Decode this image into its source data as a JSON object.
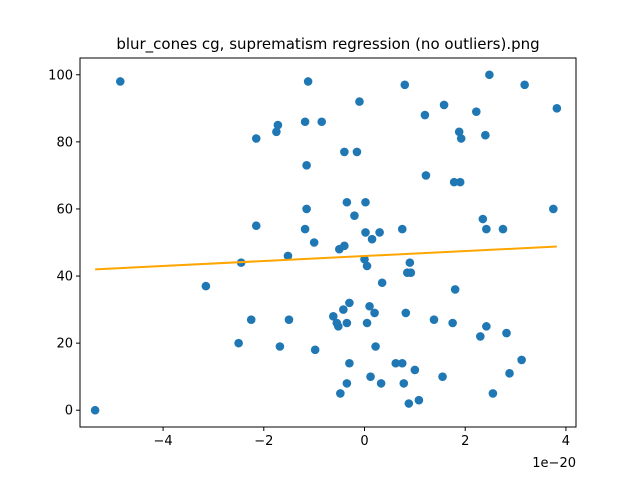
{
  "chart_data": {
    "type": "scatter",
    "title": "blur_cones cg, suprematism regression (no outliers).png",
    "xlabel": "",
    "ylabel": "",
    "x_offset_text": "1e−20",
    "xlim": [
      -5.65,
      4.2
    ],
    "ylim": [
      -5,
      105
    ],
    "xticks": [
      -4,
      -2,
      0,
      2,
      4
    ],
    "xtick_labels": [
      "−4",
      "−2",
      "0",
      "2",
      "4"
    ],
    "yticks": [
      0,
      20,
      40,
      60,
      80,
      100
    ],
    "ytick_labels": [
      "0",
      "20",
      "40",
      "60",
      "80",
      "100"
    ],
    "grid": false,
    "colors": {
      "points": "#1f77b4",
      "regression": "#ffa500"
    },
    "series": [
      {
        "type": "scatter",
        "points": [
          [
            -5.35,
            0
          ],
          [
            -4.85,
            98
          ],
          [
            -3.15,
            37
          ],
          [
            -2.5,
            20
          ],
          [
            -2.45,
            44
          ],
          [
            -2.25,
            27
          ],
          [
            -2.15,
            81
          ],
          [
            -2.15,
            55
          ],
          [
            -1.75,
            83
          ],
          [
            -1.72,
            85
          ],
          [
            -1.68,
            19
          ],
          [
            -1.52,
            46
          ],
          [
            -1.5,
            27
          ],
          [
            -1.18,
            86
          ],
          [
            -1.18,
            54
          ],
          [
            -1.15,
            73
          ],
          [
            -1.15,
            60
          ],
          [
            -1.12,
            98
          ],
          [
            -1.0,
            50
          ],
          [
            -0.98,
            18
          ],
          [
            -0.85,
            86
          ],
          [
            -0.62,
            28
          ],
          [
            -0.55,
            26
          ],
          [
            -0.52,
            25
          ],
          [
            -0.5,
            48
          ],
          [
            -0.48,
            5
          ],
          [
            -0.42,
            30
          ],
          [
            -0.4,
            49
          ],
          [
            -0.4,
            77
          ],
          [
            -0.35,
            26
          ],
          [
            -0.35,
            8
          ],
          [
            -0.35,
            62
          ],
          [
            -0.3,
            14
          ],
          [
            -0.3,
            32
          ],
          [
            -0.2,
            58
          ],
          [
            -0.15,
            77
          ],
          [
            -0.1,
            92
          ],
          [
            0.0,
            45
          ],
          [
            0.02,
            62
          ],
          [
            0.02,
            53
          ],
          [
            0.05,
            43
          ],
          [
            0.05,
            26
          ],
          [
            0.1,
            31
          ],
          [
            0.12,
            10
          ],
          [
            0.15,
            51
          ],
          [
            0.2,
            29
          ],
          [
            0.22,
            19
          ],
          [
            0.3,
            53
          ],
          [
            0.33,
            8
          ],
          [
            0.35,
            38
          ],
          [
            0.62,
            14
          ],
          [
            0.75,
            14
          ],
          [
            0.75,
            54
          ],
          [
            0.78,
            8
          ],
          [
            0.8,
            97
          ],
          [
            0.82,
            29
          ],
          [
            0.85,
            41
          ],
          [
            0.88,
            2
          ],
          [
            0.9,
            44
          ],
          [
            0.92,
            41
          ],
          [
            1.0,
            12
          ],
          [
            1.08,
            3
          ],
          [
            1.2,
            88
          ],
          [
            1.22,
            70
          ],
          [
            1.38,
            27
          ],
          [
            1.55,
            10
          ],
          [
            1.58,
            91
          ],
          [
            1.75,
            26
          ],
          [
            1.78,
            68
          ],
          [
            1.8,
            36
          ],
          [
            1.88,
            83
          ],
          [
            1.9,
            68
          ],
          [
            1.92,
            81
          ],
          [
            2.22,
            89
          ],
          [
            2.3,
            22
          ],
          [
            2.35,
            57
          ],
          [
            2.4,
            82
          ],
          [
            2.42,
            25
          ],
          [
            2.42,
            54
          ],
          [
            2.48,
            100
          ],
          [
            2.55,
            5
          ],
          [
            2.75,
            54
          ],
          [
            2.82,
            23
          ],
          [
            2.88,
            11
          ],
          [
            3.12,
            15
          ],
          [
            3.18,
            97
          ],
          [
            3.75,
            60
          ],
          [
            3.82,
            90
          ]
        ]
      },
      {
        "type": "line",
        "x": [
          -5.35,
          3.82
        ],
        "y": [
          42.0,
          48.8
        ]
      }
    ]
  }
}
